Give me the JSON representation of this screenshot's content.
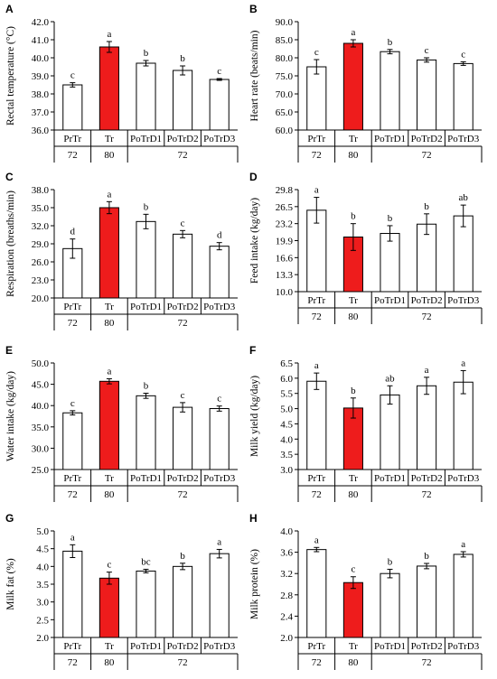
{
  "chart_data": [
    {
      "type": "bar",
      "panel": "A",
      "ylabel": "Rectal temperature (°C)",
      "ylim": [
        36.0,
        42.0
      ],
      "yticks": [
        "36.0",
        "37.0",
        "38.0",
        "39.0",
        "40.0",
        "41.0",
        "42.0"
      ],
      "categories": [
        "PrTr",
        "Tr",
        "PoTrD1",
        "PoTrD2",
        "PoTrD3"
      ],
      "values": [
        38.5,
        40.6,
        39.7,
        39.3,
        38.8
      ],
      "errors": [
        0.12,
        0.3,
        0.15,
        0.25,
        0.05
      ],
      "significance": [
        "c",
        "a",
        "b",
        "b",
        "c"
      ],
      "thi_row": [
        {
          "label": "72",
          "span": [
            0,
            0
          ]
        },
        {
          "label": "80",
          "span": [
            1,
            1
          ]
        },
        {
          "label": "72",
          "span": [
            2,
            4
          ]
        }
      ]
    },
    {
      "type": "bar",
      "panel": "B",
      "ylabel": "Heart rate (beats/min)",
      "ylim": [
        60.0,
        90.0
      ],
      "yticks": [
        "60.0",
        "65.0",
        "70.0",
        "75.0",
        "80.0",
        "85.0",
        "90.0"
      ],
      "categories": [
        "PrTr",
        "Tr",
        "PoTrD1",
        "PoTrD2",
        "PoTrD3"
      ],
      "values": [
        77.5,
        84.0,
        81.7,
        79.4,
        78.4
      ],
      "errors": [
        2.0,
        1.0,
        0.6,
        0.6,
        0.5
      ],
      "significance": [
        "c",
        "a",
        "b",
        "c",
        "c"
      ],
      "thi_row": [
        {
          "label": "72",
          "span": [
            0,
            0
          ]
        },
        {
          "label": "80",
          "span": [
            1,
            1
          ]
        },
        {
          "label": "72",
          "span": [
            2,
            4
          ]
        }
      ]
    },
    {
      "type": "bar",
      "panel": "C",
      "ylabel": "Respiration (breaths/min)",
      "ylim": [
        20.0,
        38.0
      ],
      "yticks": [
        "20.0",
        "23.0",
        "26.0",
        "29.0",
        "32.0",
        "35.0",
        "38.0"
      ],
      "categories": [
        "PrTr",
        "Tr",
        "PoTrD1",
        "PoTrD2",
        "PoTrD3"
      ],
      "values": [
        28.2,
        35.0,
        32.7,
        30.6,
        28.6
      ],
      "errors": [
        1.6,
        1.0,
        1.2,
        0.6,
        0.6
      ],
      "significance": [
        "d",
        "a",
        "b",
        "c",
        "d"
      ],
      "thi_row": [
        {
          "label": "72",
          "span": [
            0,
            0
          ]
        },
        {
          "label": "80",
          "span": [
            1,
            1
          ]
        },
        {
          "label": "72",
          "span": [
            2,
            4
          ]
        }
      ]
    },
    {
      "type": "bar",
      "panel": "D",
      "ylabel": "Feed intake (kg/day)",
      "ylim": [
        10.0,
        29.8
      ],
      "yticks": [
        "10.0",
        "13.3",
        "16.6",
        "19.9",
        "23.2",
        "26.5",
        "29.8"
      ],
      "categories": [
        "PrTr",
        "Tr",
        "PoTrD1",
        "PoTrD2",
        "PoTrD3"
      ],
      "values": [
        25.8,
        20.6,
        21.3,
        23.1,
        24.7
      ],
      "errors": [
        2.5,
        2.6,
        1.5,
        2.0,
        2.1
      ],
      "significance": [
        "a",
        "b",
        "b",
        "b",
        "ab"
      ],
      "thi_row": [
        {
          "label": "72",
          "span": [
            0,
            0
          ]
        },
        {
          "label": "80",
          "span": [
            1,
            1
          ]
        },
        {
          "label": "72",
          "span": [
            2,
            4
          ]
        }
      ]
    },
    {
      "type": "bar",
      "panel": "E",
      "ylabel": "Water intake (kg/day)",
      "ylim": [
        25.0,
        50.0
      ],
      "yticks": [
        "25.0",
        "30.0",
        "35.0",
        "40.0",
        "45.0",
        "50.0"
      ],
      "categories": [
        "PrTr",
        "Tr",
        "PoTrD1",
        "PoTrD2",
        "PoTrD3"
      ],
      "values": [
        38.3,
        45.7,
        42.3,
        39.6,
        39.3
      ],
      "errors": [
        0.5,
        0.6,
        0.6,
        1.1,
        0.6
      ],
      "significance": [
        "c",
        "a",
        "b",
        "c",
        "c"
      ],
      "thi_row": [
        {
          "label": "72",
          "span": [
            0,
            0
          ]
        },
        {
          "label": "80",
          "span": [
            1,
            1
          ]
        },
        {
          "label": "72",
          "span": [
            2,
            4
          ]
        }
      ]
    },
    {
      "type": "bar",
      "panel": "F",
      "ylabel": "Milk yield (kg/day)",
      "ylim": [
        3.0,
        6.5
      ],
      "yticks": [
        "3.0",
        "3.5",
        "4.0",
        "4.5",
        "5.0",
        "5.5",
        "6.0",
        "6.5"
      ],
      "categories": [
        "PrTr",
        "Tr",
        "PoTrD1",
        "PoTrD2",
        "PoTrD3"
      ],
      "values": [
        5.9,
        5.02,
        5.45,
        5.75,
        5.87
      ],
      "errors": [
        0.27,
        0.33,
        0.3,
        0.28,
        0.38
      ],
      "significance": [
        "a",
        "b",
        "ab",
        "a",
        "a"
      ],
      "thi_row": [
        {
          "label": "72",
          "span": [
            0,
            0
          ]
        },
        {
          "label": "80",
          "span": [
            1,
            1
          ]
        },
        {
          "label": "72",
          "span": [
            2,
            4
          ]
        }
      ]
    },
    {
      "type": "bar",
      "panel": "G",
      "ylabel": "Milk fat (%)",
      "ylim": [
        2.0,
        5.0
      ],
      "yticks": [
        "2.0",
        "2.5",
        "3.0",
        "3.5",
        "4.0",
        "4.5",
        "5.0"
      ],
      "categories": [
        "PrTr",
        "Tr",
        "PoTrD1",
        "PoTrD2",
        "PoTrD3"
      ],
      "values": [
        4.43,
        3.67,
        3.87,
        4.0,
        4.36
      ],
      "errors": [
        0.18,
        0.17,
        0.05,
        0.09,
        0.12
      ],
      "significance": [
        "a",
        "c",
        "bc",
        "b",
        "a"
      ],
      "thi_row": [
        {
          "label": "72",
          "span": [
            0,
            0
          ]
        },
        {
          "label": "80",
          "span": [
            1,
            1
          ]
        },
        {
          "label": "72",
          "span": [
            2,
            4
          ]
        }
      ]
    },
    {
      "type": "bar",
      "panel": "H",
      "ylabel": "Milk protein (%)",
      "ylim": [
        2.0,
        4.0
      ],
      "yticks": [
        "2.0",
        "2.4",
        "2.8",
        "3.2",
        "3.6",
        "4.0"
      ],
      "categories": [
        "PrTr",
        "Tr",
        "PoTrD1",
        "PoTrD2",
        "PoTrD3"
      ],
      "values": [
        3.65,
        3.03,
        3.2,
        3.34,
        3.56
      ],
      "errors": [
        0.04,
        0.11,
        0.08,
        0.05,
        0.05
      ],
      "significance": [
        "a",
        "c",
        "b",
        "b",
        "a"
      ],
      "thi_row": [
        {
          "label": "72",
          "span": [
            0,
            0
          ]
        },
        {
          "label": "80",
          "span": [
            1,
            1
          ]
        },
        {
          "label": "72",
          "span": [
            2,
            4
          ]
        }
      ]
    }
  ],
  "colors": {
    "highlight": "#ee1c1c",
    "bar": "#ffffff",
    "stroke": "#000000"
  },
  "highlight_category": "Tr"
}
